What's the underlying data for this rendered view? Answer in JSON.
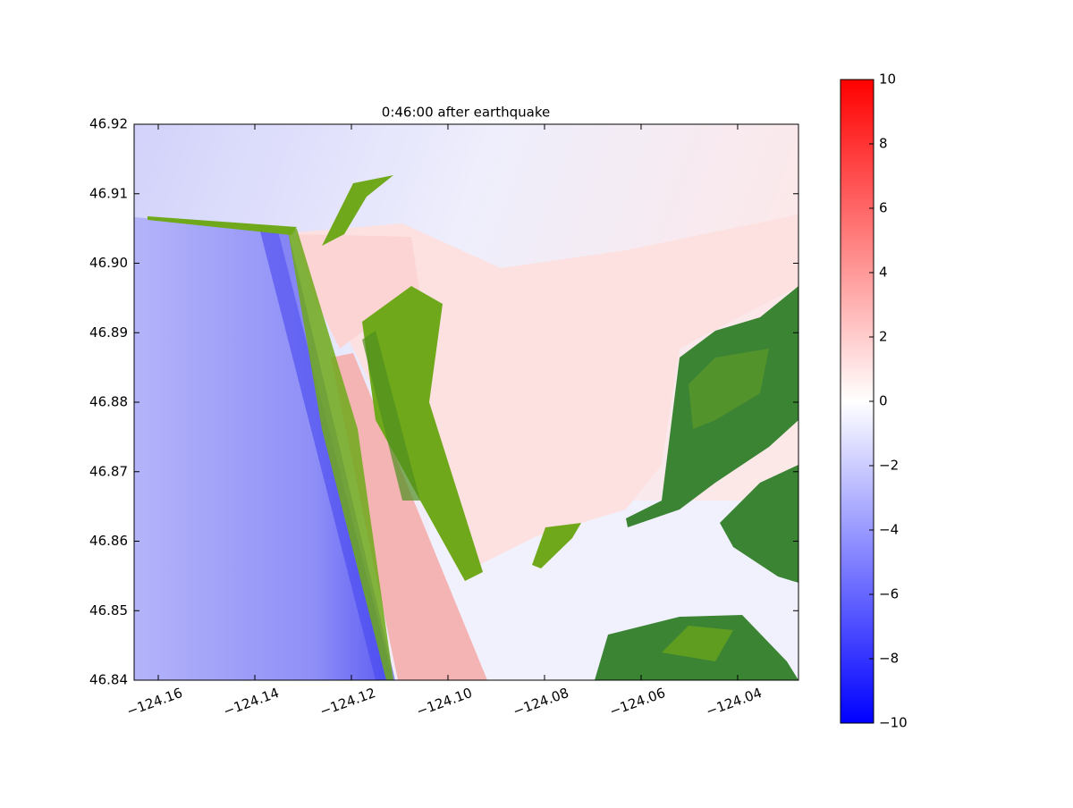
{
  "chart_data": {
    "type": "heatmap",
    "title": "0:46:00 after earthquake",
    "xlim": [
      -124.165,
      -124.0274
    ],
    "ylim": [
      46.84,
      46.92
    ],
    "xticks": [
      {
        "value": -124.16,
        "label": "−124.16"
      },
      {
        "value": -124.14,
        "label": "−124.14"
      },
      {
        "value": -124.12,
        "label": "−124.12"
      },
      {
        "value": -124.1,
        "label": "−124.10"
      },
      {
        "value": -124.08,
        "label": "−124.08"
      },
      {
        "value": -124.06,
        "label": "−124.06"
      },
      {
        "value": -124.04,
        "label": "−124.04"
      }
    ],
    "yticks": [
      46.84,
      46.85,
      46.86,
      46.87,
      46.88,
      {
        "value": 46.89,
        "label": "46.89"
      },
      {
        "value": 46.9,
        "label": "46.90"
      },
      46.91,
      46.92
    ],
    "colorbar": {
      "lim": [
        -10,
        10
      ],
      "ticks": [
        {
          "value": -10,
          "label": "−10"
        },
        {
          "value": -8,
          "label": "−8"
        },
        {
          "value": -6,
          "label": "−6"
        },
        {
          "value": -4,
          "label": "−4"
        },
        {
          "value": -2,
          "label": "−2"
        },
        0,
        2,
        4,
        6,
        8,
        10
      ],
      "colors": [
        "#0000ff",
        "#ffffff",
        "#ff0000"
      ]
    }
  }
}
